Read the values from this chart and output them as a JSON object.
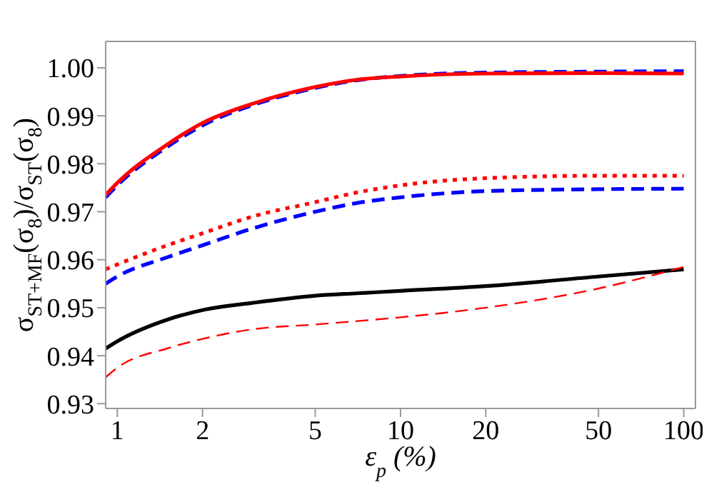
{
  "chart_data": {
    "type": "line",
    "xlabel": "ε$_{p}$ (%)",
    "ylabel": "σ$_{ST+MF}$(σ$_{8}$)/σ$_{ST}$(σ$_{8}$)",
    "log": "x",
    "xlim": [
      0.91,
      110
    ],
    "ylim": [
      0.929,
      1.0055
    ],
    "xticks": [
      1,
      2,
      5,
      10,
      20,
      50,
      100
    ],
    "yticks": [
      {
        "value": 0.93,
        "label": "0.93"
      },
      {
        "value": 0.94,
        "label": "0.94"
      },
      {
        "value": 0.95,
        "label": "0.95"
      },
      {
        "value": 0.96,
        "label": "0.96"
      },
      {
        "value": 0.97,
        "label": "0.97"
      },
      {
        "value": 0.98,
        "label": "0.98"
      },
      {
        "value": 0.99,
        "label": "0.99"
      },
      {
        "value": 1.0,
        "label": "1.00"
      }
    ],
    "grid": false,
    "legend": false,
    "marker": "none",
    "x": [
      0.91,
      1,
      1.5,
      2,
      3,
      5,
      7,
      10,
      20,
      50,
      100
    ],
    "series": [
      {
        "color": "#0000ff",
        "line_style": "dashed",
        "values": [
          0.973,
          0.9755,
          0.9835,
          0.988,
          0.9922,
          0.9958,
          0.9974,
          0.9983,
          0.999,
          0.9992,
          0.9993
        ]
      },
      {
        "color": "#ff0000",
        "line_style": "solid",
        "values": [
          0.9735,
          0.976,
          0.984,
          0.9885,
          0.9925,
          0.996,
          0.9975,
          0.9982,
          0.9988,
          0.9989,
          0.9988
        ]
      },
      {
        "color": "#ff0000",
        "line_style": "dotted",
        "values": [
          0.958,
          0.959,
          0.963,
          0.9655,
          0.969,
          0.972,
          0.974,
          0.9755,
          0.977,
          0.9775,
          0.9775
        ]
      },
      {
        "color": "#0000ff",
        "line_style": "dashed",
        "values": [
          0.955,
          0.9565,
          0.9605,
          0.963,
          0.9665,
          0.97,
          0.9718,
          0.973,
          0.9743,
          0.9747,
          0.9748
        ]
      },
      {
        "color": "#000000",
        "line_style": "solid",
        "values": [
          0.9415,
          0.943,
          0.9475,
          0.9495,
          0.951,
          0.9525,
          0.953,
          0.9535,
          0.9545,
          0.9565,
          0.958
        ]
      },
      {
        "color": "#ff0000",
        "line_style": "dashed",
        "values": [
          0.9355,
          0.9375,
          0.9415,
          0.9435,
          0.9455,
          0.9465,
          0.9472,
          0.948,
          0.95,
          0.954,
          0.9585
        ]
      }
    ]
  }
}
